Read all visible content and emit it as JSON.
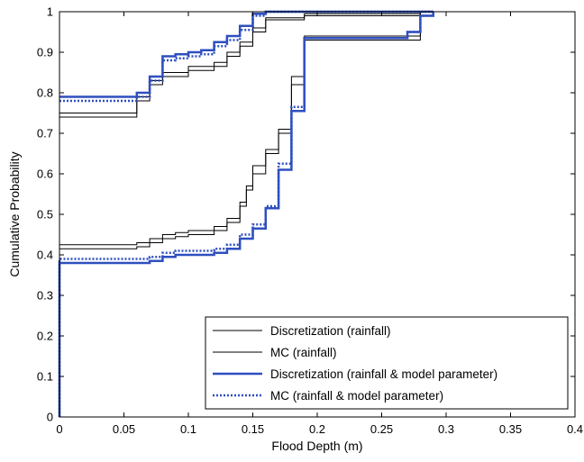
{
  "chart_data": {
    "type": "line",
    "xlabel": "Flood Depth (m)",
    "ylabel": "Cumulative Probability",
    "xlim": [
      0,
      0.4
    ],
    "ylim": [
      0,
      1
    ],
    "xticks": [
      "0",
      "0.05",
      "0.1",
      "0.15",
      "0.2",
      "0.25",
      "0.3",
      "0.35",
      "0.4"
    ],
    "yticks": [
      "0",
      "0.1",
      "0.2",
      "0.3",
      "0.4",
      "0.5",
      "0.6",
      "0.7",
      "0.8",
      "0.9",
      "1"
    ],
    "grid": false,
    "legend_position": "bottom-right",
    "series": [
      {
        "name": "Discretization (rainfall)",
        "color": "#000000",
        "style": "solid",
        "step_groups": [
          [
            [
              0,
              0
            ],
            [
              0,
              0.425
            ],
            [
              0.05,
              0.425
            ],
            [
              0.06,
              0.43
            ],
            [
              0.07,
              0.44
            ],
            [
              0.08,
              0.45
            ],
            [
              0.09,
              0.455
            ],
            [
              0.1,
              0.46
            ],
            [
              0.12,
              0.47
            ],
            [
              0.13,
              0.49
            ],
            [
              0.14,
              0.53
            ],
            [
              0.145,
              0.57
            ],
            [
              0.15,
              0.62
            ],
            [
              0.16,
              0.66
            ],
            [
              0.17,
              0.71
            ],
            [
              0.18,
              0.84
            ],
            [
              0.19,
              0.94
            ],
            [
              0.28,
              0.94
            ],
            [
              0.28,
              1
            ]
          ],
          [
            [
              0,
              0.75
            ],
            [
              0.05,
              0.75
            ],
            [
              0.06,
              0.79
            ],
            [
              0.07,
              0.83
            ],
            [
              0.08,
              0.85
            ],
            [
              0.1,
              0.865
            ],
            [
              0.12,
              0.875
            ],
            [
              0.13,
              0.9
            ],
            [
              0.14,
              0.925
            ],
            [
              0.15,
              0.96
            ],
            [
              0.16,
              0.985
            ],
            [
              0.19,
              0.995
            ],
            [
              0.28,
              0.995
            ],
            [
              0.28,
              1
            ]
          ]
        ]
      },
      {
        "name": "MC (rainfall)",
        "color": "#000000",
        "style": "solid",
        "step_groups": [
          [
            [
              0,
              0
            ],
            [
              0,
              0.415
            ],
            [
              0.05,
              0.415
            ],
            [
              0.06,
              0.42
            ],
            [
              0.07,
              0.43
            ],
            [
              0.08,
              0.44
            ],
            [
              0.09,
              0.445
            ],
            [
              0.1,
              0.45
            ],
            [
              0.12,
              0.46
            ],
            [
              0.13,
              0.48
            ],
            [
              0.14,
              0.52
            ],
            [
              0.145,
              0.56
            ],
            [
              0.15,
              0.6
            ],
            [
              0.16,
              0.65
            ],
            [
              0.17,
              0.7
            ],
            [
              0.18,
              0.82
            ],
            [
              0.19,
              0.93
            ],
            [
              0.28,
              0.93
            ],
            [
              0.28,
              1
            ]
          ],
          [
            [
              0,
              0.74
            ],
            [
              0.05,
              0.74
            ],
            [
              0.06,
              0.78
            ],
            [
              0.07,
              0.82
            ],
            [
              0.08,
              0.84
            ],
            [
              0.1,
              0.855
            ],
            [
              0.12,
              0.865
            ],
            [
              0.13,
              0.89
            ],
            [
              0.14,
              0.915
            ],
            [
              0.15,
              0.95
            ],
            [
              0.16,
              0.98
            ],
            [
              0.19,
              0.99
            ],
            [
              0.28,
              0.99
            ],
            [
              0.28,
              1
            ]
          ]
        ]
      },
      {
        "name": "Discretization (rainfall & model parameter)",
        "color": "#2e4fbf",
        "style": "solid",
        "step_groups": [
          [
            [
              0,
              0
            ],
            [
              0,
              0.38
            ],
            [
              0.06,
              0.38
            ],
            [
              0.07,
              0.385
            ],
            [
              0.08,
              0.395
            ],
            [
              0.09,
              0.4
            ],
            [
              0.12,
              0.405
            ],
            [
              0.13,
              0.415
            ],
            [
              0.14,
              0.44
            ],
            [
              0.15,
              0.465
            ],
            [
              0.16,
              0.515
            ],
            [
              0.17,
              0.61
            ],
            [
              0.18,
              0.755
            ],
            [
              0.19,
              0.935
            ],
            [
              0.26,
              0.935
            ],
            [
              0.27,
              0.95
            ],
            [
              0.28,
              0.965
            ],
            [
              0.28,
              0.99
            ],
            [
              0.29,
              1
            ]
          ],
          [
            [
              0,
              0.79
            ],
            [
              0.05,
              0.79
            ],
            [
              0.06,
              0.8
            ],
            [
              0.07,
              0.84
            ],
            [
              0.08,
              0.89
            ],
            [
              0.09,
              0.895
            ],
            [
              0.1,
              0.9
            ],
            [
              0.11,
              0.905
            ],
            [
              0.12,
              0.925
            ],
            [
              0.13,
              0.94
            ],
            [
              0.14,
              0.965
            ],
            [
              0.15,
              0.995
            ],
            [
              0.16,
              1
            ],
            [
              0.29,
              1
            ]
          ]
        ]
      },
      {
        "name": "MC (rainfall & model parameter)",
        "color": "#2e4fbf",
        "style": "dotted",
        "step_groups": [
          [
            [
              0,
              0
            ],
            [
              0,
              0.39
            ],
            [
              0.06,
              0.39
            ],
            [
              0.07,
              0.395
            ],
            [
              0.08,
              0.405
            ],
            [
              0.09,
              0.41
            ],
            [
              0.12,
              0.415
            ],
            [
              0.13,
              0.425
            ],
            [
              0.14,
              0.45
            ],
            [
              0.15,
              0.475
            ],
            [
              0.16,
              0.52
            ],
            [
              0.17,
              0.625
            ],
            [
              0.18,
              0.765
            ],
            [
              0.19,
              0.935
            ],
            [
              0.26,
              0.935
            ],
            [
              0.27,
              0.95
            ],
            [
              0.28,
              0.965
            ],
            [
              0.28,
              0.99
            ],
            [
              0.29,
              1
            ]
          ],
          [
            [
              0,
              0.78
            ],
            [
              0.05,
              0.78
            ],
            [
              0.06,
              0.79
            ],
            [
              0.07,
              0.83
            ],
            [
              0.08,
              0.88
            ],
            [
              0.09,
              0.885
            ],
            [
              0.1,
              0.89
            ],
            [
              0.11,
              0.895
            ],
            [
              0.12,
              0.915
            ],
            [
              0.13,
              0.93
            ],
            [
              0.14,
              0.955
            ],
            [
              0.15,
              0.99
            ],
            [
              0.16,
              1
            ],
            [
              0.29,
              1
            ]
          ]
        ]
      }
    ]
  }
}
